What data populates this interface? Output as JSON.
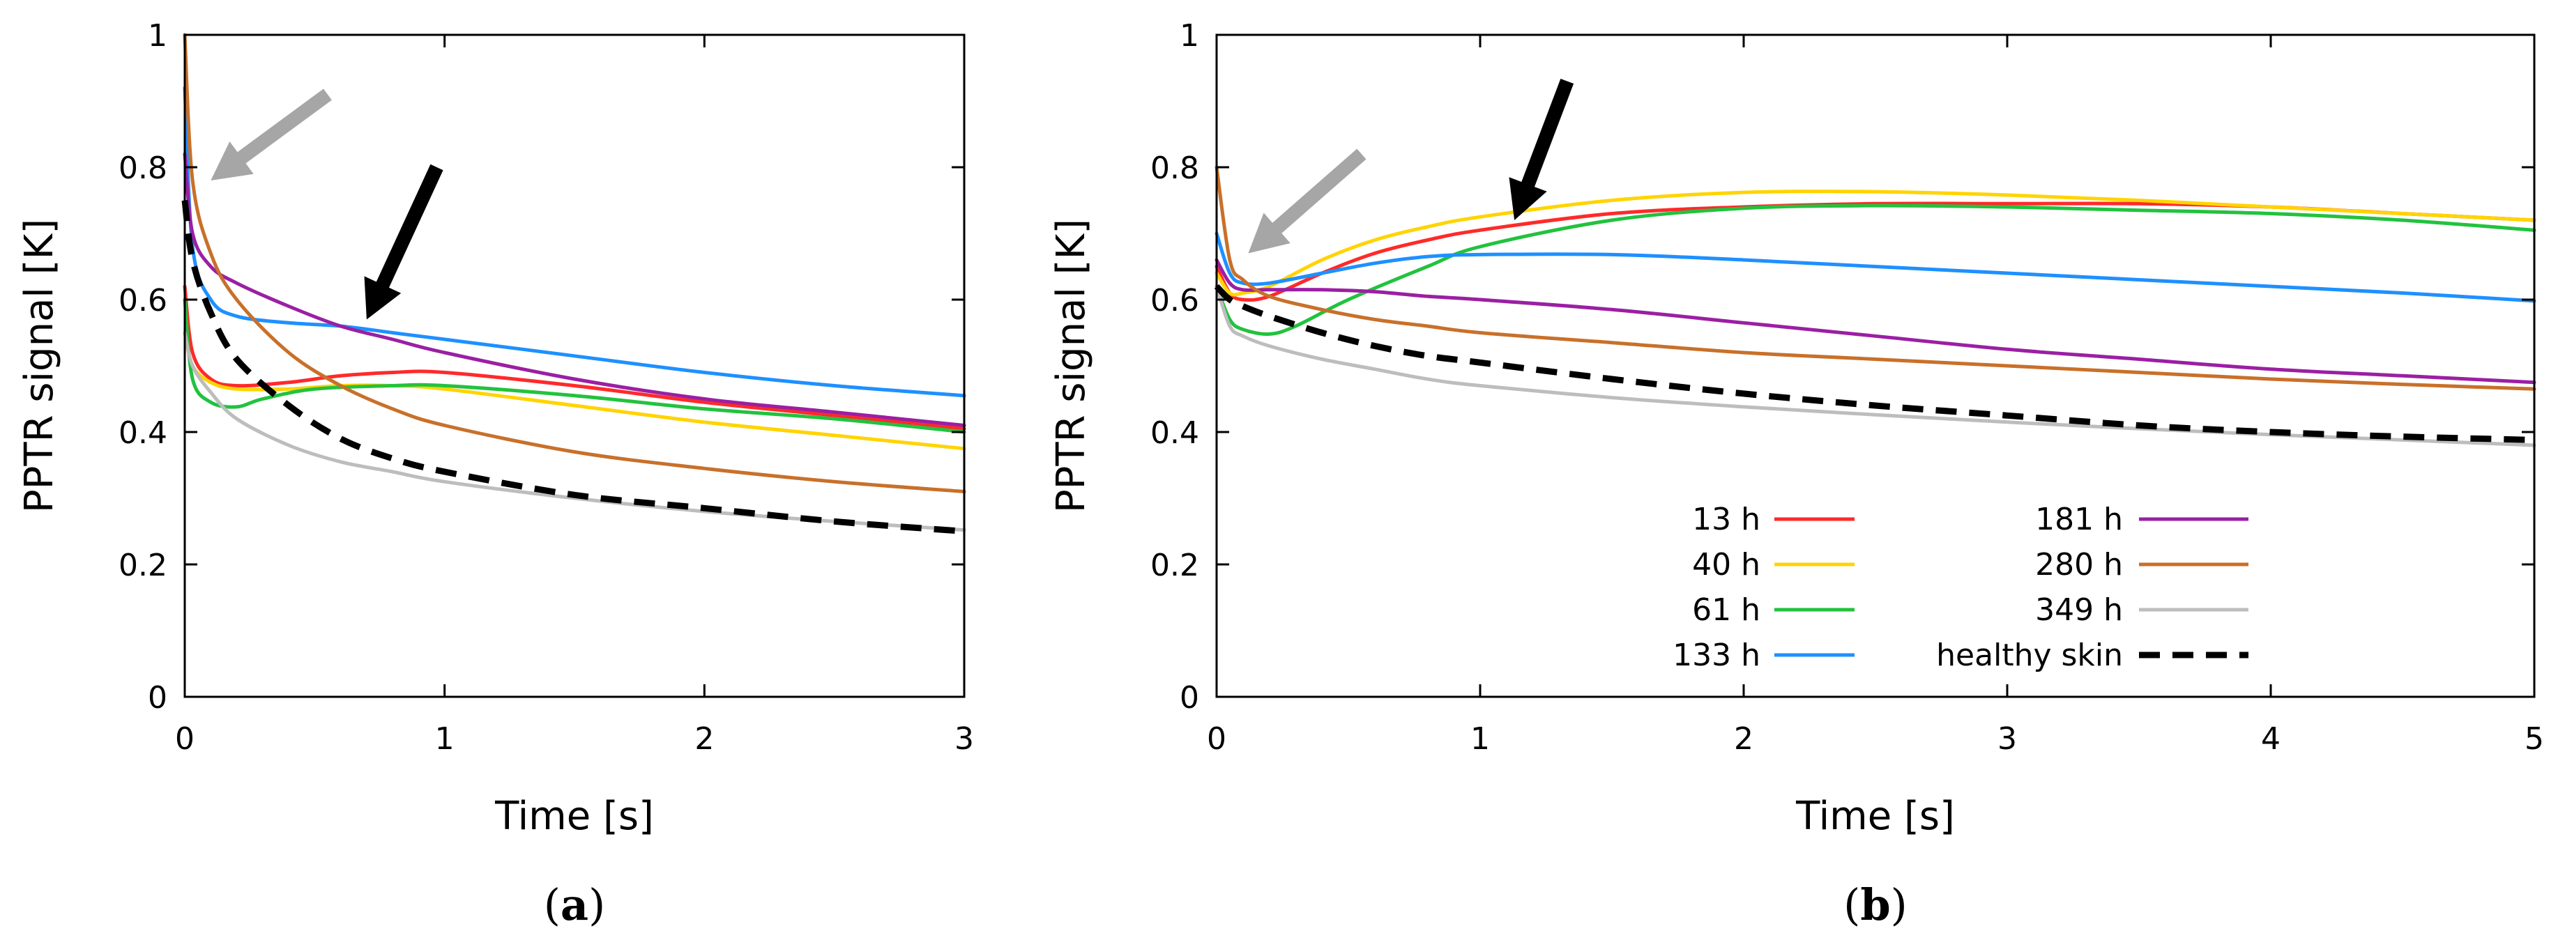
{
  "colors": {
    "13 h": "#ff2a2a",
    "40 h": "#ffd400",
    "61 h": "#22c23e",
    "133 h": "#1e90ff",
    "181 h": "#9b1fa3",
    "280 h": "#c8702a",
    "349 h": "#bdbdbd",
    "healthy skin": "#000000",
    "arrow_gray": "#a6a6a6",
    "arrow_black": "#000000"
  },
  "captions": {
    "a": {
      "open": "(",
      "letter": "a",
      "close": ")"
    },
    "b": {
      "open": "(",
      "letter": "b",
      "close": ")"
    }
  },
  "chart_data": [
    {
      "id": "a",
      "type": "line",
      "xlabel": "Time [s]",
      "ylabel": "PPTR signal [K]",
      "xlim": [
        0,
        3
      ],
      "ylim": [
        0,
        1
      ],
      "xticks": [
        0,
        1,
        2,
        3
      ],
      "yticks": [
        0,
        0.2,
        0.4,
        0.6,
        0.8,
        1
      ],
      "ytick_labels": [
        "0",
        "0.2",
        "0.4",
        "0.6",
        "0.8",
        "1"
      ],
      "grid": false,
      "arrows": [
        {
          "color": "gray",
          "from": [
            0.55,
            0.91
          ],
          "to": [
            0.1,
            0.78
          ]
        },
        {
          "color": "black",
          "from": [
            0.97,
            0.8
          ],
          "to": [
            0.7,
            0.57
          ]
        }
      ],
      "series": [
        {
          "name": "13 h",
          "x": [
            0,
            0.03,
            0.1,
            0.2,
            0.4,
            0.6,
            0.8,
            1.0,
            1.5,
            2.0,
            2.5,
            3.0
          ],
          "values": [
            0.62,
            0.52,
            0.48,
            0.47,
            0.475,
            0.485,
            0.49,
            0.49,
            0.47,
            0.445,
            0.425,
            0.405
          ]
        },
        {
          "name": "40 h",
          "x": [
            0,
            0.03,
            0.1,
            0.2,
            0.4,
            0.6,
            0.8,
            1.0,
            1.5,
            2.0,
            2.5,
            3.0
          ],
          "values": [
            0.55,
            0.5,
            0.475,
            0.465,
            0.465,
            0.47,
            0.47,
            0.465,
            0.44,
            0.415,
            0.395,
            0.375
          ]
        },
        {
          "name": "61 h",
          "x": [
            0,
            0.03,
            0.1,
            0.2,
            0.3,
            0.5,
            0.8,
            1.0,
            1.5,
            2.0,
            2.5,
            3.0
          ],
          "values": [
            0.6,
            0.48,
            0.445,
            0.438,
            0.45,
            0.465,
            0.47,
            0.47,
            0.455,
            0.435,
            0.42,
            0.4
          ]
        },
        {
          "name": "133 h",
          "x": [
            0,
            0.03,
            0.1,
            0.2,
            0.4,
            0.6,
            0.8,
            1.0,
            1.5,
            2.0,
            2.5,
            3.0
          ],
          "values": [
            0.92,
            0.68,
            0.6,
            0.575,
            0.565,
            0.56,
            0.55,
            0.54,
            0.515,
            0.49,
            0.47,
            0.455
          ]
        },
        {
          "name": "181 h",
          "x": [
            0,
            0.03,
            0.1,
            0.2,
            0.4,
            0.6,
            0.8,
            1.0,
            1.5,
            2.0,
            2.5,
            3.0
          ],
          "values": [
            0.82,
            0.7,
            0.65,
            0.625,
            0.59,
            0.56,
            0.54,
            0.52,
            0.48,
            0.45,
            0.43,
            0.41
          ]
        },
        {
          "name": "280 h",
          "x": [
            0,
            0.03,
            0.1,
            0.2,
            0.4,
            0.6,
            0.8,
            1.0,
            1.5,
            2.0,
            2.5,
            3.0
          ],
          "values": [
            1.0,
            0.78,
            0.67,
            0.6,
            0.52,
            0.47,
            0.435,
            0.41,
            0.37,
            0.345,
            0.325,
            0.31
          ]
        },
        {
          "name": "349 h",
          "x": [
            0,
            0.03,
            0.1,
            0.2,
            0.4,
            0.6,
            0.8,
            1.0,
            1.5,
            2.0,
            2.5,
            3.0
          ],
          "values": [
            0.55,
            0.5,
            0.46,
            0.42,
            0.38,
            0.355,
            0.34,
            0.325,
            0.3,
            0.28,
            0.265,
            0.252
          ]
        },
        {
          "name": "healthy skin",
          "x": [
            0,
            0.03,
            0.1,
            0.2,
            0.4,
            0.6,
            0.8,
            1.0,
            1.5,
            2.0,
            2.5,
            3.0
          ],
          "values": [
            0.75,
            0.66,
            0.58,
            0.51,
            0.44,
            0.39,
            0.36,
            0.34,
            0.305,
            0.285,
            0.265,
            0.25
          ],
          "dashed": true
        }
      ]
    },
    {
      "id": "b",
      "type": "line",
      "xlabel": "Time [s]",
      "ylabel": "PPTR signal [K]",
      "xlim": [
        0,
        5
      ],
      "ylim": [
        0,
        1
      ],
      "xticks": [
        0,
        1,
        2,
        3,
        4,
        5
      ],
      "yticks": [
        0,
        0.2,
        0.4,
        0.6,
        0.8,
        1
      ],
      "ytick_labels": [
        "0",
        "0.2",
        "0.4",
        "0.6",
        "0.8",
        "1"
      ],
      "grid": false,
      "legend_position": "bottom-center",
      "arrows": [
        {
          "color": "gray",
          "from": [
            0.55,
            0.82
          ],
          "to": [
            0.12,
            0.67
          ]
        },
        {
          "color": "black",
          "from": [
            1.33,
            0.93
          ],
          "to": [
            1.13,
            0.72
          ]
        }
      ],
      "series": [
        {
          "name": "13 h",
          "x": [
            0,
            0.05,
            0.1,
            0.2,
            0.4,
            0.6,
            0.8,
            1.0,
            1.5,
            2.0,
            2.5,
            3.0,
            3.5,
            4.0,
            4.5,
            5.0
          ],
          "values": [
            0.65,
            0.61,
            0.6,
            0.605,
            0.64,
            0.67,
            0.69,
            0.705,
            0.73,
            0.74,
            0.745,
            0.745,
            0.745,
            0.74,
            0.73,
            0.72
          ]
        },
        {
          "name": "40 h",
          "x": [
            0,
            0.05,
            0.1,
            0.2,
            0.4,
            0.6,
            0.8,
            1.0,
            1.5,
            2.0,
            2.5,
            3.0,
            3.5,
            4.0,
            4.5,
            5.0
          ],
          "values": [
            0.64,
            0.61,
            0.61,
            0.62,
            0.66,
            0.69,
            0.71,
            0.725,
            0.75,
            0.762,
            0.763,
            0.758,
            0.75,
            0.74,
            0.73,
            0.72
          ]
        },
        {
          "name": "61 h",
          "x": [
            0,
            0.05,
            0.1,
            0.2,
            0.3,
            0.5,
            0.8,
            1.0,
            1.5,
            2.0,
            2.5,
            3.0,
            3.5,
            4.0,
            4.5,
            5.0
          ],
          "values": [
            0.62,
            0.57,
            0.555,
            0.548,
            0.56,
            0.6,
            0.65,
            0.68,
            0.72,
            0.738,
            0.742,
            0.74,
            0.735,
            0.73,
            0.72,
            0.705
          ]
        },
        {
          "name": "133 h",
          "x": [
            0,
            0.05,
            0.1,
            0.2,
            0.4,
            0.6,
            0.8,
            1.0,
            1.5,
            2.0,
            2.5,
            3.0,
            3.5,
            4.0,
            4.5,
            5.0
          ],
          "values": [
            0.7,
            0.64,
            0.625,
            0.625,
            0.64,
            0.655,
            0.665,
            0.668,
            0.668,
            0.66,
            0.65,
            0.64,
            0.63,
            0.62,
            0.61,
            0.598
          ]
        },
        {
          "name": "181 h",
          "x": [
            0,
            0.05,
            0.1,
            0.2,
            0.4,
            0.6,
            0.8,
            1.0,
            1.5,
            2.0,
            2.5,
            3.0,
            3.5,
            4.0,
            4.5,
            5.0
          ],
          "values": [
            0.66,
            0.625,
            0.615,
            0.615,
            0.615,
            0.612,
            0.605,
            0.6,
            0.585,
            0.565,
            0.545,
            0.525,
            0.51,
            0.495,
            0.485,
            0.475
          ]
        },
        {
          "name": "280 h",
          "x": [
            0,
            0.05,
            0.1,
            0.2,
            0.4,
            0.6,
            0.8,
            1.0,
            1.5,
            2.0,
            2.5,
            3.0,
            3.5,
            4.0,
            4.5,
            5.0
          ],
          "values": [
            0.8,
            0.66,
            0.63,
            0.605,
            0.585,
            0.57,
            0.56,
            0.55,
            0.535,
            0.52,
            0.51,
            0.5,
            0.49,
            0.48,
            0.472,
            0.465
          ]
        },
        {
          "name": "349 h",
          "x": [
            0,
            0.05,
            0.1,
            0.2,
            0.4,
            0.6,
            0.8,
            1.0,
            1.5,
            2.0,
            2.5,
            3.0,
            3.5,
            4.0,
            4.5,
            5.0
          ],
          "values": [
            0.62,
            0.56,
            0.545,
            0.53,
            0.51,
            0.495,
            0.48,
            0.47,
            0.452,
            0.438,
            0.426,
            0.415,
            0.405,
            0.396,
            0.388,
            0.38
          ]
        },
        {
          "name": "healthy skin",
          "x": [
            0,
            0.05,
            0.1,
            0.2,
            0.4,
            0.6,
            0.8,
            1.0,
            1.5,
            2.0,
            2.5,
            3.0,
            3.5,
            4.0,
            4.5,
            5.0
          ],
          "values": [
            0.62,
            0.6,
            0.59,
            0.575,
            0.55,
            0.53,
            0.515,
            0.505,
            0.48,
            0.458,
            0.44,
            0.425,
            0.41,
            0.4,
            0.393,
            0.388
          ],
          "dashed": true
        }
      ]
    }
  ]
}
